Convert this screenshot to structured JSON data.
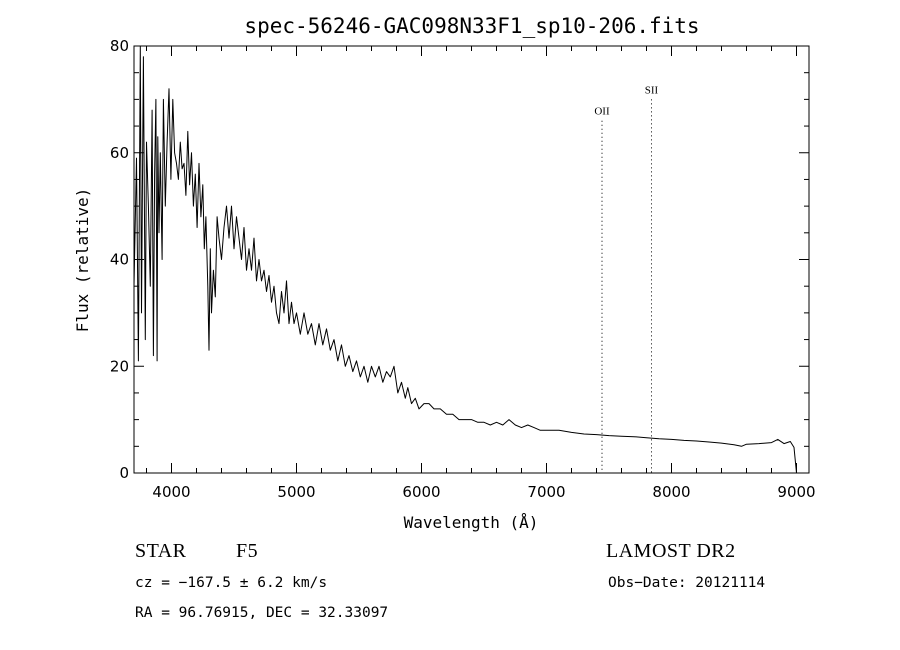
{
  "chart_data": {
    "type": "line",
    "title": "spec-56246-GAC098N33F1_sp10-206.fits",
    "xlabel": "Wavelength (Å)",
    "ylabel": "Flux (relative)",
    "xlim": [
      3700,
      9100
    ],
    "ylim": [
      0,
      80
    ],
    "xticks": [
      4000,
      5000,
      6000,
      7000,
      8000,
      9000
    ],
    "yticks": [
      0,
      20,
      40,
      60,
      80
    ],
    "grid": false,
    "series": [
      {
        "x": [
          3700,
          3720,
          3735,
          3750,
          3760,
          3775,
          3790,
          3800,
          3815,
          3830,
          3845,
          3855,
          3865,
          3875,
          3885,
          3890,
          3900,
          3910,
          3925,
          3935,
          3950,
          3965,
          3980,
          3995,
          4010,
          4025,
          4040,
          4055,
          4070,
          4085,
          4100,
          4115,
          4130,
          4145,
          4160,
          4175,
          4190,
          4205,
          4220,
          4235,
          4250,
          4262,
          4275,
          4290,
          4300,
          4310,
          4320,
          4335,
          4350,
          4365,
          4380,
          4400,
          4420,
          4440,
          4460,
          4480,
          4500,
          4520,
          4540,
          4560,
          4580,
          4600,
          4620,
          4640,
          4660,
          4680,
          4700,
          4720,
          4740,
          4760,
          4780,
          4800,
          4820,
          4840,
          4860,
          4880,
          4900,
          4920,
          4940,
          4960,
          4980,
          5000,
          5030,
          5060,
          5090,
          5120,
          5150,
          5180,
          5210,
          5240,
          5270,
          5300,
          5330,
          5360,
          5390,
          5420,
          5450,
          5480,
          5510,
          5540,
          5570,
          5600,
          5630,
          5660,
          5690,
          5720,
          5750,
          5780,
          5810,
          5840,
          5870,
          5890,
          5920,
          5950,
          5980,
          6020,
          6060,
          6100,
          6150,
          6200,
          6250,
          6300,
          6350,
          6400,
          6450,
          6500,
          6550,
          6600,
          6650,
          6700,
          6750,
          6800,
          6850,
          6900,
          6950,
          7000,
          7100,
          7200,
          7300,
          7400,
          7500,
          7600,
          7700,
          7800,
          7900,
          8000,
          8100,
          8200,
          8300,
          8400,
          8500,
          8560,
          8600,
          8700,
          8800,
          8850,
          8900,
          8950,
          8980,
          9000
        ],
        "y": [
          35,
          59,
          21,
          80,
          30,
          78,
          25,
          62,
          50,
          35,
          68,
          22,
          56,
          70,
          21,
          63,
          45,
          60,
          40,
          70,
          50,
          62,
          72,
          55,
          70,
          60,
          58,
          55,
          62,
          57,
          58,
          52,
          64,
          54,
          60,
          50,
          56,
          46,
          58,
          48,
          54,
          42,
          48,
          35,
          23,
          42,
          30,
          38,
          33,
          48,
          44,
          40,
          46,
          50,
          44,
          50,
          42,
          48,
          44,
          40,
          46,
          38,
          42,
          38,
          44,
          36,
          40,
          36,
          38,
          34,
          37,
          32,
          35,
          30,
          28,
          34,
          30,
          36,
          28,
          32,
          28,
          30,
          26,
          30,
          26,
          28,
          24,
          28,
          24,
          27,
          23,
          25,
          21,
          24,
          20,
          22,
          19,
          21,
          18,
          20,
          17,
          20,
          18,
          20,
          17,
          19,
          18,
          20,
          15,
          17,
          14,
          16,
          13,
          14,
          12,
          13,
          13,
          12,
          12,
          11,
          11,
          10,
          10,
          10,
          9.5,
          9.5,
          9,
          9.5,
          9,
          10,
          9,
          8.5,
          9,
          8.5,
          8,
          8,
          8,
          7.6,
          7.3,
          7.2,
          7,
          6.9,
          6.8,
          6.6,
          6.4,
          6.3,
          6.1,
          6,
          5.8,
          5.6,
          5.3,
          5,
          5.4,
          5.5,
          5.7,
          6.3,
          5.5,
          5.9,
          4.8,
          0
        ]
      }
    ],
    "annotations": [
      {
        "label": "OII",
        "x": 7444,
        "level": 0.9
      },
      {
        "label": "SII",
        "x": 7840,
        "level": 0.95
      }
    ]
  },
  "info": {
    "object_class": "STAR",
    "subclass": "F5",
    "survey": "LAMOST DR2",
    "cz": "cz = −167.5 ± 6.2 km/s",
    "obs_date": "Obs−Date: 20121114",
    "coords": "RA =  96.76915, DEC =  32.33097"
  }
}
